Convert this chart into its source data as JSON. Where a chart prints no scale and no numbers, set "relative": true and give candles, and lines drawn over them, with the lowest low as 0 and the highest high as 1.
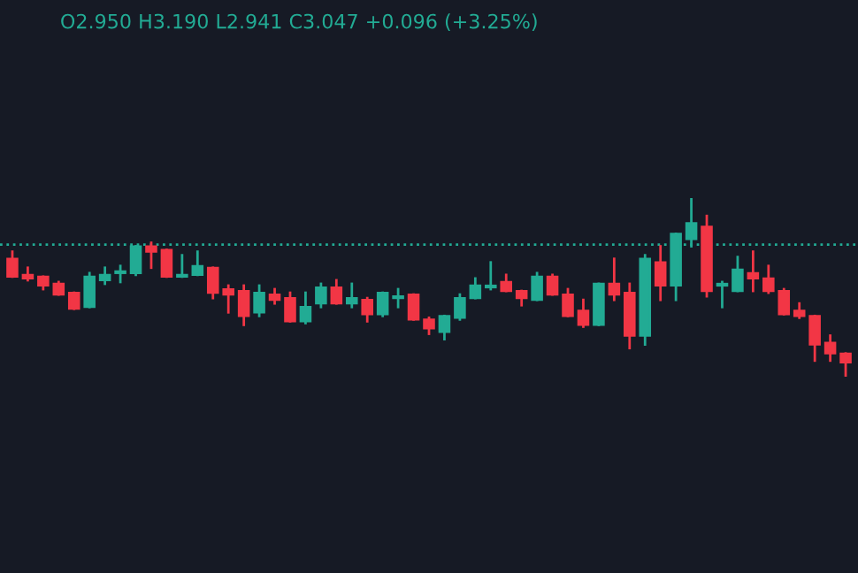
{
  "chart_data": {
    "type": "candlestick",
    "relative": true,
    "annotations": [
      "O2.950 H3.190 L2.941 C3.047 +0.096 (+3.25%)"
    ],
    "categories": [
      null,
      null,
      null,
      null,
      null,
      null,
      null,
      null,
      null,
      null,
      null,
      null,
      null,
      null,
      null,
      null,
      null,
      null,
      null,
      null,
      null,
      null,
      null,
      null,
      null,
      null,
      null,
      null,
      null,
      null,
      null,
      null,
      null,
      null,
      null,
      null,
      null,
      null,
      null,
      null,
      null,
      null,
      null,
      null,
      null,
      null,
      null,
      null,
      null,
      null,
      null,
      null,
      null,
      null,
      null
    ],
    "ohlc": [
      [
        0.66,
        0.7,
        0.56,
        0.56
      ],
      [
        0.57,
        0.61,
        0.54,
        0.55
      ],
      [
        0.56,
        0.56,
        0.49,
        0.51
      ],
      [
        0.52,
        0.53,
        0.46,
        0.46
      ],
      [
        0.47,
        0.47,
        0.38,
        0.38
      ],
      [
        0.39,
        0.58,
        0.39,
        0.56
      ],
      [
        0.54,
        0.61,
        0.52,
        0.57
      ],
      [
        0.58,
        0.62,
        0.53,
        0.59
      ],
      [
        0.58,
        0.73,
        0.57,
        0.73
      ],
      [
        0.73,
        0.75,
        0.61,
        0.7
      ],
      [
        0.71,
        0.71,
        0.56,
        0.56
      ],
      [
        0.56,
        0.68,
        0.56,
        0.57
      ],
      [
        0.57,
        0.7,
        0.57,
        0.62
      ],
      [
        0.61,
        0.61,
        0.44,
        0.47
      ],
      [
        0.49,
        0.51,
        0.36,
        0.46
      ],
      [
        0.48,
        0.51,
        0.29,
        0.34
      ],
      [
        0.36,
        0.51,
        0.34,
        0.47
      ],
      [
        0.46,
        0.49,
        0.41,
        0.43
      ],
      [
        0.44,
        0.47,
        0.31,
        0.31
      ],
      [
        0.31,
        0.47,
        0.3,
        0.39
      ],
      [
        0.41,
        0.52,
        0.39,
        0.5
      ],
      [
        0.5,
        0.54,
        0.41,
        0.41
      ],
      [
        0.41,
        0.52,
        0.39,
        0.44
      ],
      [
        0.43,
        0.44,
        0.31,
        0.35
      ],
      [
        0.35,
        0.47,
        0.34,
        0.47
      ],
      [
        0.44,
        0.49,
        0.39,
        0.45
      ],
      [
        0.46,
        0.46,
        0.32,
        0.32
      ],
      [
        0.32,
        0.33,
        0.24,
        0.27
      ],
      [
        0.25,
        0.34,
        0.21,
        0.34
      ],
      [
        0.33,
        0.46,
        0.32,
        0.44
      ],
      [
        0.44,
        0.55,
        0.44,
        0.51
      ],
      [
        0.5,
        0.64,
        0.49,
        0.51
      ],
      [
        0.53,
        0.57,
        0.48,
        0.48
      ],
      [
        0.48,
        0.48,
        0.4,
        0.44
      ],
      [
        0.43,
        0.58,
        0.43,
        0.56
      ],
      [
        0.56,
        0.57,
        0.46,
        0.46
      ],
      [
        0.46,
        0.49,
        0.34,
        0.34
      ],
      [
        0.37,
        0.43,
        0.28,
        0.29
      ],
      [
        0.29,
        0.52,
        0.29,
        0.52
      ],
      [
        0.52,
        0.66,
        0.43,
        0.46
      ],
      [
        0.47,
        0.52,
        0.16,
        0.23
      ],
      [
        0.23,
        0.68,
        0.18,
        0.66
      ],
      [
        0.64,
        0.73,
        0.43,
        0.51
      ],
      [
        0.51,
        0.8,
        0.43,
        0.8
      ],
      [
        0.77,
        1.0,
        0.73,
        0.86
      ],
      [
        0.84,
        0.9,
        0.45,
        0.48
      ],
      [
        0.51,
        0.53,
        0.39,
        0.52
      ],
      [
        0.48,
        0.67,
        0.48,
        0.6
      ],
      [
        0.58,
        0.7,
        0.48,
        0.55
      ],
      [
        0.55,
        0.62,
        0.47,
        0.48
      ],
      [
        0.48,
        0.49,
        0.35,
        0.35
      ],
      [
        0.37,
        0.41,
        0.33,
        0.34
      ],
      [
        0.34,
        0.34,
        0.09,
        0.18
      ],
      [
        0.19,
        0.23,
        0.09,
        0.13
      ],
      [
        0.13,
        0.13,
        0.0,
        0.08
      ]
    ],
    "colors": [
      "#f23645",
      "#f23645",
      "#f23645",
      "#f23645",
      "#f23645",
      "#22ab94",
      "#22ab94",
      "#22ab94",
      "#22ab94",
      "#f23645",
      "#f23645",
      "#22ab94",
      "#22ab94",
      "#f23645",
      "#f23645",
      "#f23645",
      "#22ab94",
      "#f23645",
      "#f23645",
      "#22ab94",
      "#22ab94",
      "#f23645",
      "#22ab94",
      "#f23645",
      "#22ab94",
      "#22ab94",
      "#f23645",
      "#f23645",
      "#22ab94",
      "#22ab94",
      "#22ab94",
      "#22ab94",
      "#f23645",
      "#f23645",
      "#22ab94",
      "#f23645",
      "#f23645",
      "#f23645",
      "#22ab94",
      "#f23645",
      "#f23645",
      "#22ab94",
      "#f23645",
      "#22ab94",
      "#22ab94",
      "#f23645",
      "#22ab94",
      "#22ab94",
      "#f23645",
      "#f23645",
      "#f23645",
      "#f23645",
      "#f23645",
      "#f23645",
      "#f23645"
    ],
    "ref_lines": [
      {
        "axis": "y",
        "value": 0.74,
        "color": "#22ab94",
        "line_style": "dotted"
      }
    ]
  }
}
